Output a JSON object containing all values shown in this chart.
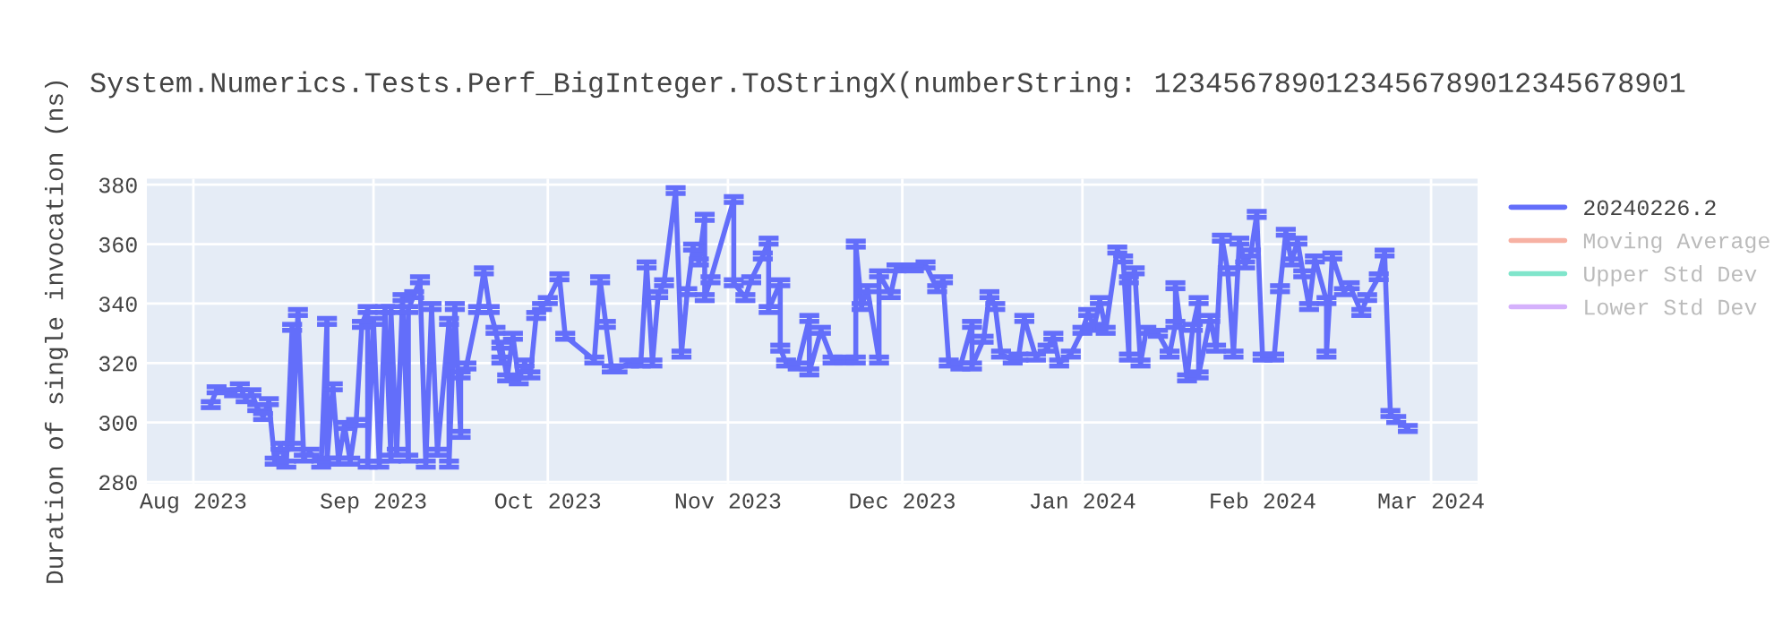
{
  "chart_data": {
    "type": "line",
    "title": "System.Numerics.Tests.Perf_BigInteger.ToStringX(numberString: 1234567890123456789012345678901",
    "ylabel": "Duration of single invocation (ns)",
    "xlim": [
      "2023-07-24",
      "2024-03-09"
    ],
    "xticks": [
      {
        "value": "2023-08-01",
        "label": "Aug 2023"
      },
      {
        "value": "2023-09-01",
        "label": "Sep 2023"
      },
      {
        "value": "2023-10-01",
        "label": "Oct 2023"
      },
      {
        "value": "2023-11-01",
        "label": "Nov 2023"
      },
      {
        "value": "2023-12-01",
        "label": "Dec 2023"
      },
      {
        "value": "2024-01-01",
        "label": "Jan 2024"
      },
      {
        "value": "2024-02-01",
        "label": "Feb 2024"
      },
      {
        "value": "2024-03-01",
        "label": "Mar 2024"
      }
    ],
    "ylim": [
      279.5,
      382
    ],
    "yticks": [
      280,
      300,
      320,
      340,
      360,
      380
    ],
    "grid": true,
    "legend": "top right",
    "marker": "none",
    "line_style": "solid",
    "series": [
      {
        "name": "20240226.2",
        "color": "#636efa",
        "x": [
          "2023-08-04",
          "2023-08-05",
          "2023-08-08",
          "2023-08-09",
          "2023-08-10",
          "2023-08-11",
          "2023-08-12",
          "2023-08-13",
          "2023-08-14",
          "2023-08-15",
          "2023-08-16",
          "2023-08-17",
          "2023-08-18",
          "2023-08-18",
          "2023-08-19",
          "2023-08-20",
          "2023-08-21",
          "2023-08-23",
          "2023-08-24",
          "2023-08-24",
          "2023-08-25",
          "2023-08-26",
          "2023-08-27",
          "2023-08-28",
          "2023-08-29",
          "2023-08-30",
          "2023-08-31",
          "2023-08-31",
          "2023-09-01",
          "2023-09-02",
          "2023-09-03",
          "2023-09-04",
          "2023-09-04",
          "2023-09-05",
          "2023-09-06",
          "2023-09-07",
          "2023-09-07",
          "2023-09-08",
          "2023-09-09",
          "2023-09-10",
          "2023-09-11",
          "2023-09-12",
          "2023-09-14",
          "2023-09-14",
          "2023-09-15",
          "2023-09-16",
          "2023-09-16",
          "2023-09-17",
          "2023-09-19",
          "2023-09-20",
          "2023-09-21",
          "2023-09-22",
          "2023-09-23",
          "2023-09-23",
          "2023-09-24",
          "2023-09-25",
          "2023-09-26",
          "2023-09-27",
          "2023-09-28",
          "2023-09-29",
          "2023-09-30",
          "2023-10-01",
          "2023-10-03",
          "2023-10-04",
          "2023-10-09",
          "2023-10-10",
          "2023-10-11",
          "2023-10-12",
          "2023-10-13",
          "2023-10-15",
          "2023-10-17",
          "2023-10-18",
          "2023-10-19",
          "2023-10-20",
          "2023-10-21",
          "2023-10-23",
          "2023-10-24",
          "2023-10-25",
          "2023-10-26",
          "2023-10-27",
          "2023-10-28",
          "2023-10-28",
          "2023-10-29",
          "2023-11-02",
          "2023-11-02",
          "2023-11-04",
          "2023-11-05",
          "2023-11-07",
          "2023-11-08",
          "2023-11-08",
          "2023-11-10",
          "2023-11-10",
          "2023-11-11",
          "2023-11-13",
          "2023-11-15",
          "2023-11-15",
          "2023-11-17",
          "2023-11-19",
          "2023-11-21",
          "2023-11-23",
          "2023-11-23",
          "2023-11-24",
          "2023-11-25",
          "2023-11-27",
          "2023-11-27",
          "2023-11-29",
          "2023-11-30",
          "2023-12-03",
          "2023-12-05",
          "2023-12-07",
          "2023-12-08",
          "2023-12-09",
          "2023-12-11",
          "2023-12-13",
          "2023-12-13",
          "2023-12-15",
          "2023-12-16",
          "2023-12-17",
          "2023-12-18",
          "2023-12-20",
          "2023-12-21",
          "2023-12-22",
          "2023-12-24",
          "2023-12-26",
          "2023-12-27",
          "2023-12-28",
          "2023-12-30",
          "2024-01-01",
          "2024-01-02",
          "2024-01-03",
          "2024-01-04",
          "2024-01-05",
          "2024-01-07",
          "2024-01-08",
          "2024-01-09",
          "2024-01-09",
          "2024-01-10",
          "2024-01-11",
          "2024-01-12",
          "2024-01-14",
          "2024-01-16",
          "2024-01-17",
          "2024-01-17",
          "2024-01-19",
          "2024-01-20",
          "2024-01-21",
          "2024-01-21",
          "2024-01-23",
          "2024-01-24",
          "2024-01-25",
          "2024-01-26",
          "2024-01-27",
          "2024-01-28",
          "2024-01-29",
          "2024-01-30",
          "2024-01-31",
          "2024-02-01",
          "2024-02-03",
          "2024-02-04",
          "2024-02-05",
          "2024-02-06",
          "2024-02-07",
          "2024-02-08",
          "2024-02-09",
          "2024-02-10",
          "2024-02-12",
          "2024-02-12",
          "2024-02-13",
          "2024-02-15",
          "2024-02-16",
          "2024-02-18",
          "2024-02-19",
          "2024-02-21",
          "2024-02-22",
          "2024-02-23",
          "2024-02-24",
          "2024-02-26"
        ],
        "values": [
          306,
          311,
          310,
          312,
          308,
          310,
          305,
          302,
          307,
          287,
          292,
          286,
          332,
          292,
          337,
          288,
          290,
          286,
          334,
          287,
          312,
          287,
          299,
          287,
          300,
          333,
          338,
          286,
          334,
          286,
          338,
          288,
          338,
          290,
          342,
          288,
          338,
          343,
          348,
          286,
          339,
          290,
          334,
          286,
          339,
          296,
          316,
          319,
          338,
          351,
          338,
          331,
          321,
          326,
          315,
          329,
          314,
          320,
          316,
          336,
          339,
          341,
          349,
          329,
          321,
          348,
          333,
          318,
          318,
          320,
          320,
          353,
          320,
          343,
          347,
          378,
          323,
          344,
          359,
          354,
          369,
          342,
          348,
          375,
          347,
          342,
          348,
          356,
          361,
          338,
          347,
          325,
          320,
          319,
          335,
          317,
          331,
          321,
          321,
          321,
          360,
          339,
          345,
          321,
          350,
          343,
          352,
          352,
          353,
          345,
          348,
          320,
          319,
          333,
          319,
          328,
          343,
          339,
          323,
          321,
          322,
          335,
          322,
          325,
          329,
          320,
          323,
          331,
          337,
          332,
          341,
          331,
          358,
          355,
          322,
          348,
          351,
          320,
          331,
          330,
          323,
          333,
          346,
          315,
          332,
          341,
          316,
          335,
          325,
          362,
          351,
          323,
          361,
          353,
          357,
          370,
          322,
          322,
          345,
          364,
          354,
          361,
          350,
          339,
          355,
          341,
          323,
          356,
          344,
          346,
          337,
          342,
          349,
          357,
          303,
          301,
          298
        ],
        "errors": [
          1,
          1,
          1,
          1,
          1,
          1,
          1,
          1,
          1,
          1,
          1,
          1,
          1,
          1,
          1,
          1,
          1,
          1,
          1,
          1,
          1,
          1,
          1,
          1,
          1,
          1,
          1,
          1,
          1,
          1,
          1,
          1,
          1,
          1,
          1,
          1,
          1,
          1,
          1,
          1,
          1,
          1,
          1,
          1,
          1,
          1,
          1,
          1,
          1,
          1,
          1,
          1,
          1,
          1,
          1,
          1,
          1,
          1,
          1,
          1,
          1,
          1,
          1,
          1,
          1,
          1,
          1,
          1,
          1,
          1,
          1,
          1,
          1,
          1,
          1,
          1,
          1,
          1,
          1,
          1,
          1,
          1,
          1,
          1,
          1,
          1,
          1,
          1,
          1,
          1,
          1,
          1,
          1,
          1,
          1,
          1,
          1,
          1,
          1,
          1,
          1,
          1,
          1,
          1,
          1,
          1,
          1,
          1,
          1,
          1,
          1,
          1,
          1,
          1,
          1,
          1,
          1,
          1,
          1,
          1,
          1,
          1,
          1,
          1,
          1,
          1,
          1,
          1,
          1,
          1,
          1,
          1,
          1,
          1,
          1,
          1,
          1,
          1,
          1,
          1,
          1,
          1,
          1,
          1,
          1,
          1,
          1,
          1,
          1,
          1,
          1,
          1,
          1,
          1,
          1,
          1,
          1,
          1,
          1,
          1,
          1,
          1,
          1,
          1,
          1,
          1,
          1,
          1,
          1,
          1,
          1,
          1,
          1,
          1,
          1,
          1,
          1
        ]
      },
      {
        "name": "Moving Average",
        "color": "#f7b1a3"
      },
      {
        "name": "Upper Std Dev",
        "color": "#80e5cb"
      },
      {
        "name": "Lower Std Dev",
        "color": "#d5b1fc"
      }
    ]
  }
}
